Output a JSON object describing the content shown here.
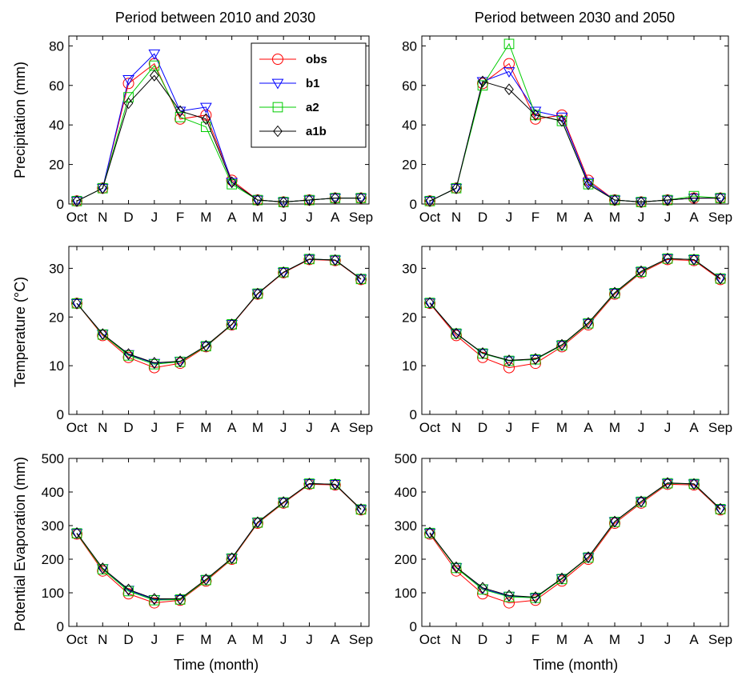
{
  "figure": {
    "columns": [
      {
        "title": "Period between 2010 and 2030"
      },
      {
        "title": "Period between 2030 and 2050"
      }
    ],
    "row_ylabels": [
      "Precipitation (mm)",
      "Temperature (°C)",
      "Potential Evaporation (mm)"
    ],
    "xlabel": "Time (month)",
    "legend": {
      "placement": "top-right of top-left panel",
      "entries": [
        {
          "label": "obs",
          "color": "#ff0000",
          "marker": "circle"
        },
        {
          "label": "b1",
          "color": "#0000ff",
          "marker": "triangle-down"
        },
        {
          "label": "a2",
          "color": "#00cc00",
          "marker": "square"
        },
        {
          "label": "a1b",
          "color": "#000000",
          "marker": "diamond"
        }
      ]
    }
  },
  "chart_data": [
    {
      "type": "line",
      "row": 0,
      "col": 0,
      "title": "Period between 2010 and 2030",
      "ylabel": "Precipitation (mm)",
      "xlabel": "",
      "categories": [
        "Oct",
        "N",
        "D",
        "J",
        "F",
        "M",
        "A",
        "M",
        "J",
        "J",
        "A",
        "Sep"
      ],
      "ylim": [
        0,
        85
      ],
      "yticks": [
        0,
        20,
        40,
        60,
        80
      ],
      "series": [
        {
          "name": "obs",
          "values": [
            1.5,
            8,
            61,
            71,
            43,
            45,
            12,
            2,
            1,
            2,
            3,
            3
          ]
        },
        {
          "name": "b1",
          "values": [
            1.5,
            8,
            63,
            76,
            47,
            49,
            11,
            2,
            1,
            2,
            3,
            3
          ]
        },
        {
          "name": "a2",
          "values": [
            1.5,
            8,
            54,
            70,
            44,
            39,
            10,
            2,
            1,
            2,
            3,
            3
          ]
        },
        {
          "name": "a1b",
          "values": [
            1.5,
            8,
            51,
            65,
            47,
            43,
            11,
            2,
            1,
            2,
            3,
            3
          ]
        }
      ]
    },
    {
      "type": "line",
      "row": 0,
      "col": 1,
      "title": "Period between 2030 and 2050",
      "ylabel": "",
      "xlabel": "",
      "categories": [
        "Oct",
        "N",
        "D",
        "J",
        "F",
        "M",
        "A",
        "M",
        "J",
        "J",
        "A",
        "Sep"
      ],
      "ylim": [
        0,
        85
      ],
      "yticks": [
        0,
        20,
        40,
        60,
        80
      ],
      "series": [
        {
          "name": "obs",
          "values": [
            1.5,
            8,
            61,
            71,
            43,
            45,
            12,
            2,
            1,
            2,
            3,
            3
          ]
        },
        {
          "name": "b1",
          "values": [
            1.5,
            8,
            62,
            67,
            47,
            44,
            11,
            2,
            1,
            2,
            3,
            3
          ]
        },
        {
          "name": "a2",
          "values": [
            1.5,
            8,
            60,
            81,
            45,
            42,
            10,
            2,
            1,
            2,
            4,
            3
          ]
        },
        {
          "name": "a1b",
          "values": [
            1.5,
            8,
            62,
            58,
            45,
            42,
            10,
            2,
            1,
            2,
            3,
            3
          ]
        }
      ]
    },
    {
      "type": "line",
      "row": 1,
      "col": 0,
      "title": "",
      "ylabel": "Temperature (°C)",
      "xlabel": "",
      "categories": [
        "Oct",
        "N",
        "D",
        "J",
        "F",
        "M",
        "A",
        "M",
        "J",
        "J",
        "A",
        "Sep"
      ],
      "ylim": [
        0,
        34.5
      ],
      "yticks": [
        0,
        10,
        20,
        30
      ],
      "series": [
        {
          "name": "obs",
          "values": [
            22.8,
            16.2,
            11.7,
            9.6,
            10.5,
            13.9,
            18.4,
            24.7,
            29.1,
            31.8,
            31.6,
            27.7
          ]
        },
        {
          "name": "b1",
          "values": [
            22.8,
            16.5,
            12.3,
            10.5,
            10.9,
            14.0,
            18.5,
            24.8,
            29.2,
            31.9,
            31.7,
            27.8
          ]
        },
        {
          "name": "a2",
          "values": [
            22.8,
            16.4,
            12.1,
            10.3,
            10.8,
            14.0,
            18.5,
            24.8,
            29.2,
            31.9,
            31.7,
            27.8
          ]
        },
        {
          "name": "a1b",
          "values": [
            22.8,
            16.5,
            12.4,
            10.6,
            10.9,
            14.1,
            18.5,
            24.8,
            29.2,
            31.9,
            31.7,
            27.8
          ]
        }
      ]
    },
    {
      "type": "line",
      "row": 1,
      "col": 1,
      "title": "",
      "ylabel": "",
      "xlabel": "",
      "categories": [
        "Oct",
        "N",
        "D",
        "J",
        "F",
        "M",
        "A",
        "M",
        "J",
        "J",
        "A",
        "Sep"
      ],
      "ylim": [
        0,
        34.5
      ],
      "yticks": [
        0,
        10,
        20,
        30
      ],
      "series": [
        {
          "name": "obs",
          "values": [
            22.8,
            16.2,
            11.7,
            9.6,
            10.5,
            13.9,
            18.4,
            24.7,
            29.1,
            31.8,
            31.6,
            27.7
          ]
        },
        {
          "name": "b1",
          "values": [
            22.9,
            16.6,
            12.5,
            11.0,
            11.3,
            14.2,
            18.7,
            24.9,
            29.3,
            32.0,
            31.8,
            27.9
          ]
        },
        {
          "name": "a2",
          "values": [
            22.9,
            16.6,
            12.5,
            11.0,
            11.3,
            14.2,
            18.7,
            24.9,
            29.3,
            32.0,
            31.8,
            27.9
          ]
        },
        {
          "name": "a1b",
          "values": [
            22.9,
            16.6,
            12.6,
            11.1,
            11.4,
            14.3,
            18.8,
            25.0,
            29.4,
            32.0,
            31.8,
            27.9
          ]
        }
      ]
    },
    {
      "type": "line",
      "row": 2,
      "col": 0,
      "title": "",
      "ylabel": "Potential Evaporation (mm)",
      "xlabel": "Time (month)",
      "categories": [
        "Oct",
        "N",
        "D",
        "J",
        "F",
        "M",
        "A",
        "M",
        "J",
        "J",
        "A",
        "Sep"
      ],
      "ylim": [
        0,
        500
      ],
      "yticks": [
        0,
        100,
        200,
        300,
        400,
        500
      ],
      "series": [
        {
          "name": "obs",
          "values": [
            275,
            165,
            97,
            70,
            78,
            135,
            200,
            307,
            367,
            423,
            421,
            347
          ]
        },
        {
          "name": "b1",
          "values": [
            277,
            172,
            108,
            80,
            80,
            139,
            203,
            310,
            369,
            425,
            423,
            348
          ]
        },
        {
          "name": "a2",
          "values": [
            277,
            170,
            105,
            78,
            80,
            138,
            202,
            309,
            369,
            425,
            423,
            348
          ]
        },
        {
          "name": "a1b",
          "values": [
            278,
            173,
            110,
            82,
            82,
            140,
            203,
            310,
            370,
            425,
            423,
            349
          ]
        }
      ]
    },
    {
      "type": "line",
      "row": 2,
      "col": 1,
      "title": "",
      "ylabel": "",
      "xlabel": "Time (month)",
      "categories": [
        "Oct",
        "N",
        "D",
        "J",
        "F",
        "M",
        "A",
        "M",
        "J",
        "J",
        "A",
        "Sep"
      ],
      "ylim": [
        0,
        500
      ],
      "yticks": [
        0,
        100,
        200,
        300,
        400,
        500
      ],
      "series": [
        {
          "name": "obs",
          "values": [
            275,
            165,
            97,
            70,
            78,
            135,
            200,
            307,
            367,
            423,
            421,
            347
          ]
        },
        {
          "name": "b1",
          "values": [
            278,
            175,
            112,
            90,
            85,
            142,
            205,
            312,
            371,
            426,
            424,
            349
          ]
        },
        {
          "name": "a2",
          "values": [
            278,
            174,
            110,
            88,
            85,
            141,
            205,
            311,
            371,
            426,
            424,
            349
          ]
        },
        {
          "name": "a1b",
          "values": [
            279,
            176,
            115,
            92,
            87,
            143,
            206,
            312,
            372,
            427,
            424,
            350
          ]
        }
      ]
    }
  ]
}
